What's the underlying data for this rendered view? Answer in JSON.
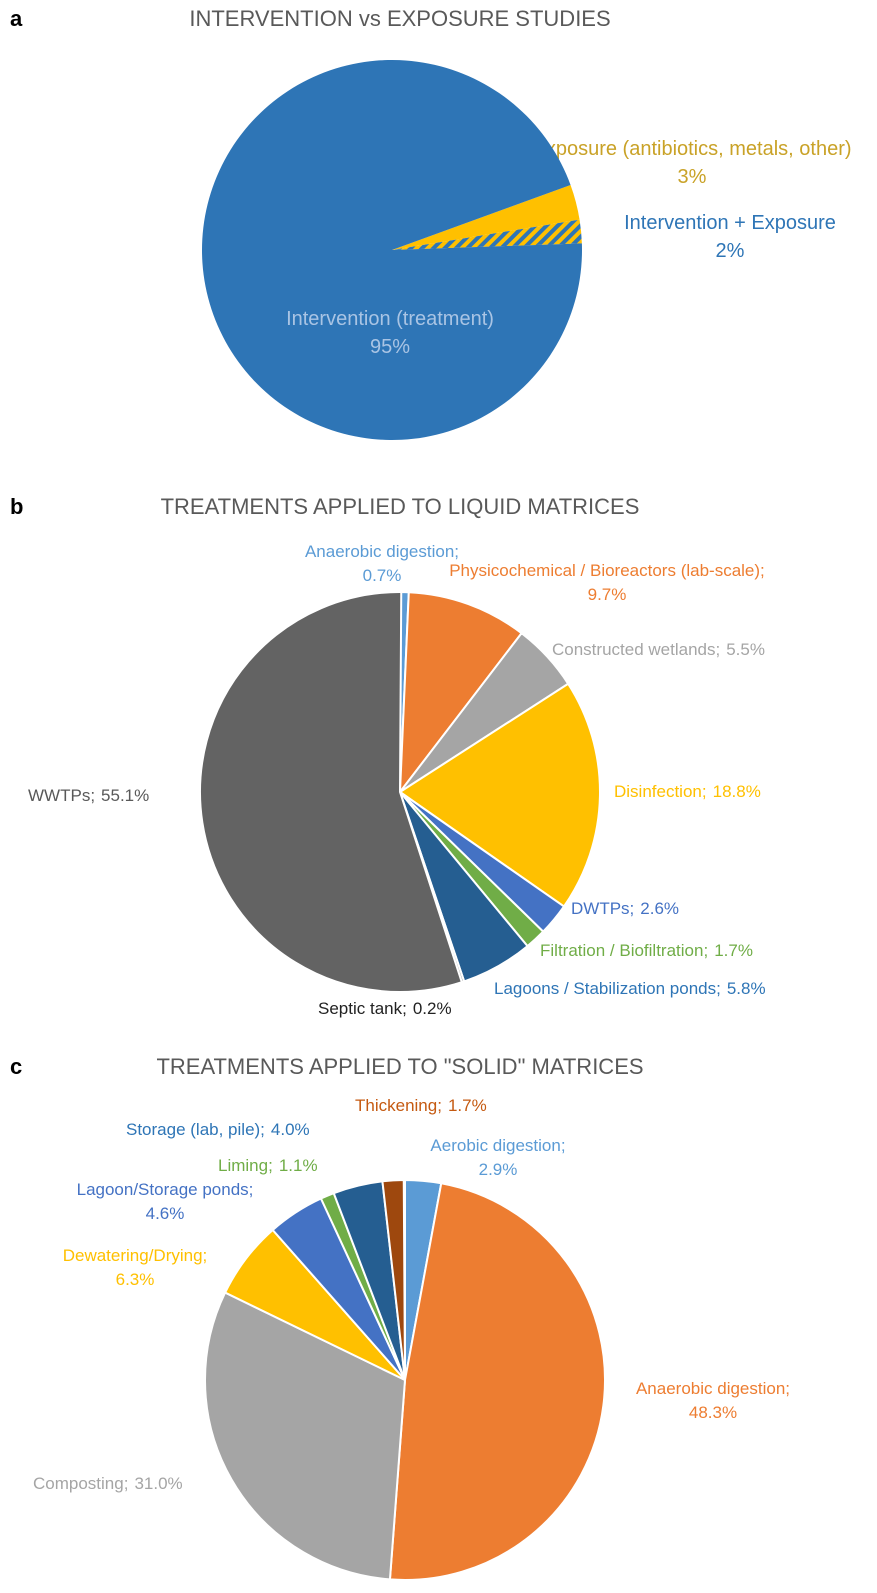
{
  "chart_data": [
    {
      "type": "pie",
      "panel": "a",
      "title": "INTERVENTION vs EXPOSURE STUDIES",
      "start_angle": 70,
      "categories": [
        "Exposure (antibiotics, metals, other)",
        "Intervention + Exposure",
        "Intervention (treatment)"
      ],
      "values": [
        3,
        2,
        95
      ],
      "value_labels": [
        "3%",
        "2%",
        "95%"
      ],
      "colors": [
        "#ffc000",
        "#ffc000",
        "#2e75b6"
      ],
      "hatched": [
        false,
        true,
        false
      ]
    },
    {
      "type": "pie",
      "panel": "b",
      "title": "TREATMENTS APPLIED TO LIQUID MATRICES",
      "start_angle": 0,
      "categories": [
        "Anaerobic digestion;",
        "Physicochemical / Bioreactors (lab-scale);",
        "Constructed wetlands;",
        "Disinfection;",
        "DWTPs;",
        "Filtration / Biofiltration;",
        "Lagoons / Stabilization ponds;",
        "Septic tank;",
        "WWTPs;"
      ],
      "values": [
        0.7,
        9.7,
        5.5,
        18.8,
        2.6,
        1.7,
        5.8,
        0.2,
        55.1
      ],
      "value_labels": [
        "0.7%",
        "9.7%",
        "5.5%",
        "18.8%",
        "2.6%",
        "1.7%",
        "5.8%",
        "0.2%",
        "55.1%"
      ],
      "colors": [
        "#5b9bd5",
        "#ed7d31",
        "#a5a5a5",
        "#ffc000",
        "#4472c4",
        "#70ad47",
        "#255e91",
        "#9e9e9e",
        "#636363"
      ]
    },
    {
      "type": "pie",
      "panel": "c",
      "title": "TREATMENTS APPLIED TO \"SOLID\" MATRICES",
      "start_angle": 0,
      "categories": [
        "Aerobic digestion;",
        "Anaerobic digestion;",
        "Composting;",
        "Dewatering/Drying;",
        "Lagoon/Storage ponds;",
        "Liming;",
        "Storage (lab, pile);",
        "Thickening;"
      ],
      "values": [
        2.9,
        48.3,
        31.0,
        6.3,
        4.6,
        1.1,
        4.0,
        1.7
      ],
      "value_labels": [
        "2.9%",
        "48.3%",
        "31.0%",
        "6.3%",
        "4.6%",
        "1.1%",
        "4.0%",
        "1.7%"
      ],
      "colors": [
        "#5b9bd5",
        "#ed7d31",
        "#a5a5a5",
        "#ffc000",
        "#4472c4",
        "#70ad47",
        "#255e91",
        "#9e480e"
      ]
    }
  ]
}
